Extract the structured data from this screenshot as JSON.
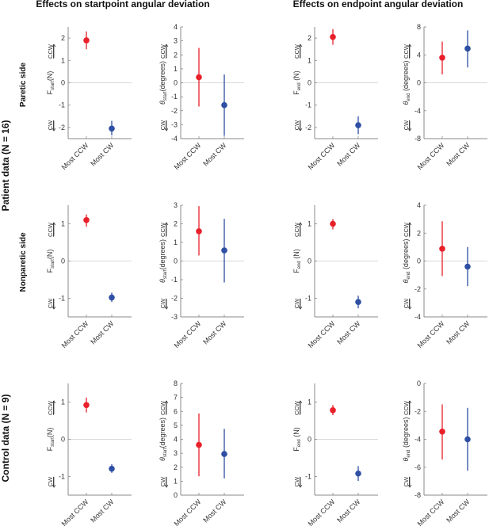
{
  "headers": {
    "start_title": "Effects on startpoint angular deviation",
    "end_title": "Effects on endpoint angular deviation"
  },
  "row_groups": {
    "patient": "Patient data (N = 16)",
    "control": "Control data (N = 9)"
  },
  "row_labels": [
    "Paretic side",
    "Nonparetic side",
    ""
  ],
  "direction_labels": {
    "up": "CCW",
    "down": "CW"
  },
  "colors": {
    "most_ccw": "#e8202a",
    "most_cw": "#2e4fa3",
    "axis": "#888888",
    "zero": "#cccccc"
  },
  "chart_data": [
    {
      "type": "scatter",
      "panel": "paretic-Fstart",
      "ylabel": "F_start (N)",
      "ylabel_main": "F",
      "ylabel_sub": "start",
      "ylabel_unit": "(N)",
      "ylim": [
        -2.5,
        2.5
      ],
      "yticks": [
        -2,
        -1,
        0,
        1,
        2
      ],
      "categories": [
        "Most CCW",
        "Most CW"
      ],
      "series": [
        {
          "name": "Most CCW",
          "value": 1.9,
          "err": [
            1.5,
            2.3
          ]
        },
        {
          "name": "Most CW",
          "value": -2.05,
          "err": [
            -2.35,
            -1.7
          ]
        }
      ]
    },
    {
      "type": "scatter",
      "panel": "paretic-theta-start",
      "ylabel": "θ_start (degrees)",
      "ylabel_main": "θ",
      "ylabel_sub": "start",
      "ylabel_unit": "(degrees)",
      "ylim": [
        -4,
        4
      ],
      "yticks": [
        -4,
        -3,
        -2,
        -1,
        0,
        1,
        2,
        3,
        4
      ],
      "categories": [
        "Most CCW",
        "Most CW"
      ],
      "series": [
        {
          "name": "Most CCW",
          "value": 0.4,
          "err": [
            -1.7,
            2.5
          ]
        },
        {
          "name": "Most CW",
          "value": -1.6,
          "err": [
            -3.8,
            0.6
          ]
        }
      ]
    },
    {
      "type": "scatter",
      "panel": "paretic-Fend",
      "ylabel": "F_end (N)",
      "ylabel_main": "F",
      "ylabel_sub": "end",
      "ylabel_unit": " (N)",
      "ylim": [
        -2.5,
        2.5
      ],
      "yticks": [
        -2,
        -1,
        0,
        1,
        2
      ],
      "categories": [
        "Most CCW",
        "Most CW"
      ],
      "series": [
        {
          "name": "Most CCW",
          "value": 2.05,
          "err": [
            1.7,
            2.4
          ]
        },
        {
          "name": "Most CW",
          "value": -1.9,
          "err": [
            -2.3,
            -1.5
          ]
        }
      ]
    },
    {
      "type": "scatter",
      "panel": "paretic-theta-end",
      "ylabel": "θ_end (degrees)",
      "ylabel_main": "θ",
      "ylabel_sub": "end",
      "ylabel_unit": " (degrees)",
      "ylim": [
        -8,
        8
      ],
      "yticks": [
        -8,
        -4,
        0,
        4,
        8
      ],
      "categories": [
        "Most CCW",
        "Most CW"
      ],
      "series": [
        {
          "name": "Most CCW",
          "value": 3.6,
          "err": [
            1.2,
            5.9
          ]
        },
        {
          "name": "Most CW",
          "value": 4.9,
          "err": [
            2.2,
            7.5
          ]
        }
      ]
    },
    {
      "type": "scatter",
      "panel": "nonparetic-Fstart",
      "ylabel": "F_start (N)",
      "ylabel_main": "F",
      "ylabel_sub": "start",
      "ylabel_unit": "(N)",
      "ylim": [
        -1.5,
        1.5
      ],
      "yticks": [
        -1,
        0,
        1
      ],
      "categories": [
        "Most CCW",
        "Most CW"
      ],
      "series": [
        {
          "name": "Most CCW",
          "value": 1.1,
          "err": [
            0.92,
            1.25
          ]
        },
        {
          "name": "Most CW",
          "value": -0.98,
          "err": [
            -1.1,
            -0.85
          ]
        }
      ]
    },
    {
      "type": "scatter",
      "panel": "nonparetic-theta-start",
      "ylabel": "θ_start (degrees)",
      "ylabel_main": "θ",
      "ylabel_sub": "start",
      "ylabel_unit": "(degrees)",
      "ylim": [
        -3,
        3
      ],
      "yticks": [
        -3,
        -2,
        -1,
        0,
        1,
        2,
        3
      ],
      "categories": [
        "Most CCW",
        "Most CW"
      ],
      "series": [
        {
          "name": "Most CCW",
          "value": 1.6,
          "err": [
            0.3,
            2.95
          ]
        },
        {
          "name": "Most CW",
          "value": 0.57,
          "err": [
            -1.15,
            2.27
          ]
        }
      ]
    },
    {
      "type": "scatter",
      "panel": "nonparetic-Fend",
      "ylabel": "F_end (N)",
      "ylabel_main": "F",
      "ylabel_sub": "end",
      "ylabel_unit": " (N)",
      "ylim": [
        -1.5,
        1.5
      ],
      "yticks": [
        -1,
        0,
        1
      ],
      "categories": [
        "Most CCW",
        "Most CW"
      ],
      "series": [
        {
          "name": "Most CCW",
          "value": 1.0,
          "err": [
            0.85,
            1.13
          ]
        },
        {
          "name": "Most CW",
          "value": -1.1,
          "err": [
            -1.27,
            -0.93
          ]
        }
      ]
    },
    {
      "type": "scatter",
      "panel": "nonparetic-theta-end",
      "ylabel": "θ_end (degrees)",
      "ylabel_main": "θ",
      "ylabel_sub": "end",
      "ylabel_unit": " (degrees)",
      "ylim": [
        -4,
        4
      ],
      "yticks": [
        -4,
        -2,
        0,
        2,
        4
      ],
      "categories": [
        "Most CCW",
        "Most CW"
      ],
      "series": [
        {
          "name": "Most CCW",
          "value": 0.88,
          "err": [
            -1.08,
            2.85
          ]
        },
        {
          "name": "Most CW",
          "value": -0.4,
          "err": [
            -1.8,
            1.0
          ]
        }
      ]
    },
    {
      "type": "scatter",
      "panel": "control-Fstart",
      "ylabel": "F_start (N)",
      "ylabel_main": "F",
      "ylabel_sub": "start",
      "ylabel_unit": "(N)",
      "ylim": [
        -1.5,
        1.5
      ],
      "yticks": [
        -1,
        0,
        1
      ],
      "categories": [
        "Most CCW",
        "Most CW"
      ],
      "series": [
        {
          "name": "Most CCW",
          "value": 0.92,
          "err": [
            0.72,
            1.12
          ]
        },
        {
          "name": "Most CW",
          "value": -0.79,
          "err": [
            -0.9,
            -0.67
          ]
        }
      ]
    },
    {
      "type": "scatter",
      "panel": "control-theta-start",
      "ylabel": "θ_start (degrees)",
      "ylabel_main": "θ",
      "ylabel_sub": "start",
      "ylabel_unit": "(degrees)",
      "ylim": [
        0,
        8
      ],
      "yticks": [
        0,
        1,
        2,
        3,
        4,
        5,
        6,
        7,
        8
      ],
      "categories": [
        "Most CCW",
        "Most CW"
      ],
      "series": [
        {
          "name": "Most CCW",
          "value": 3.6,
          "err": [
            1.35,
            5.85
          ]
        },
        {
          "name": "Most CW",
          "value": 2.95,
          "err": [
            1.2,
            4.75
          ]
        }
      ]
    },
    {
      "type": "scatter",
      "panel": "control-Fend",
      "ylabel": "F_end (N)",
      "ylabel_main": "F",
      "ylabel_sub": "end",
      "ylabel_unit": " (N)",
      "ylim": [
        -1.5,
        1.5
      ],
      "yticks": [
        -1,
        0,
        1
      ],
      "categories": [
        "Most CCW",
        "Most CW"
      ],
      "series": [
        {
          "name": "Most CCW",
          "value": 0.78,
          "err": [
            0.65,
            0.92
          ]
        },
        {
          "name": "Most CW",
          "value": -0.92,
          "err": [
            -1.12,
            -0.72
          ]
        }
      ]
    },
    {
      "type": "scatter",
      "panel": "control-theta-end",
      "ylabel": "θ_end (degrees)",
      "ylabel_main": "θ",
      "ylabel_sub": "end",
      "ylabel_unit": " (degrees)",
      "ylim": [
        -8,
        0
      ],
      "yticks": [
        -8,
        -6,
        -4,
        -2,
        0
      ],
      "categories": [
        "Most CCW",
        "Most CW"
      ],
      "series": [
        {
          "name": "Most CCW",
          "value": -3.45,
          "err": [
            -5.45,
            -1.5
          ]
        },
        {
          "name": "Most CW",
          "value": -4.0,
          "err": [
            -6.25,
            -1.75
          ]
        }
      ]
    }
  ]
}
